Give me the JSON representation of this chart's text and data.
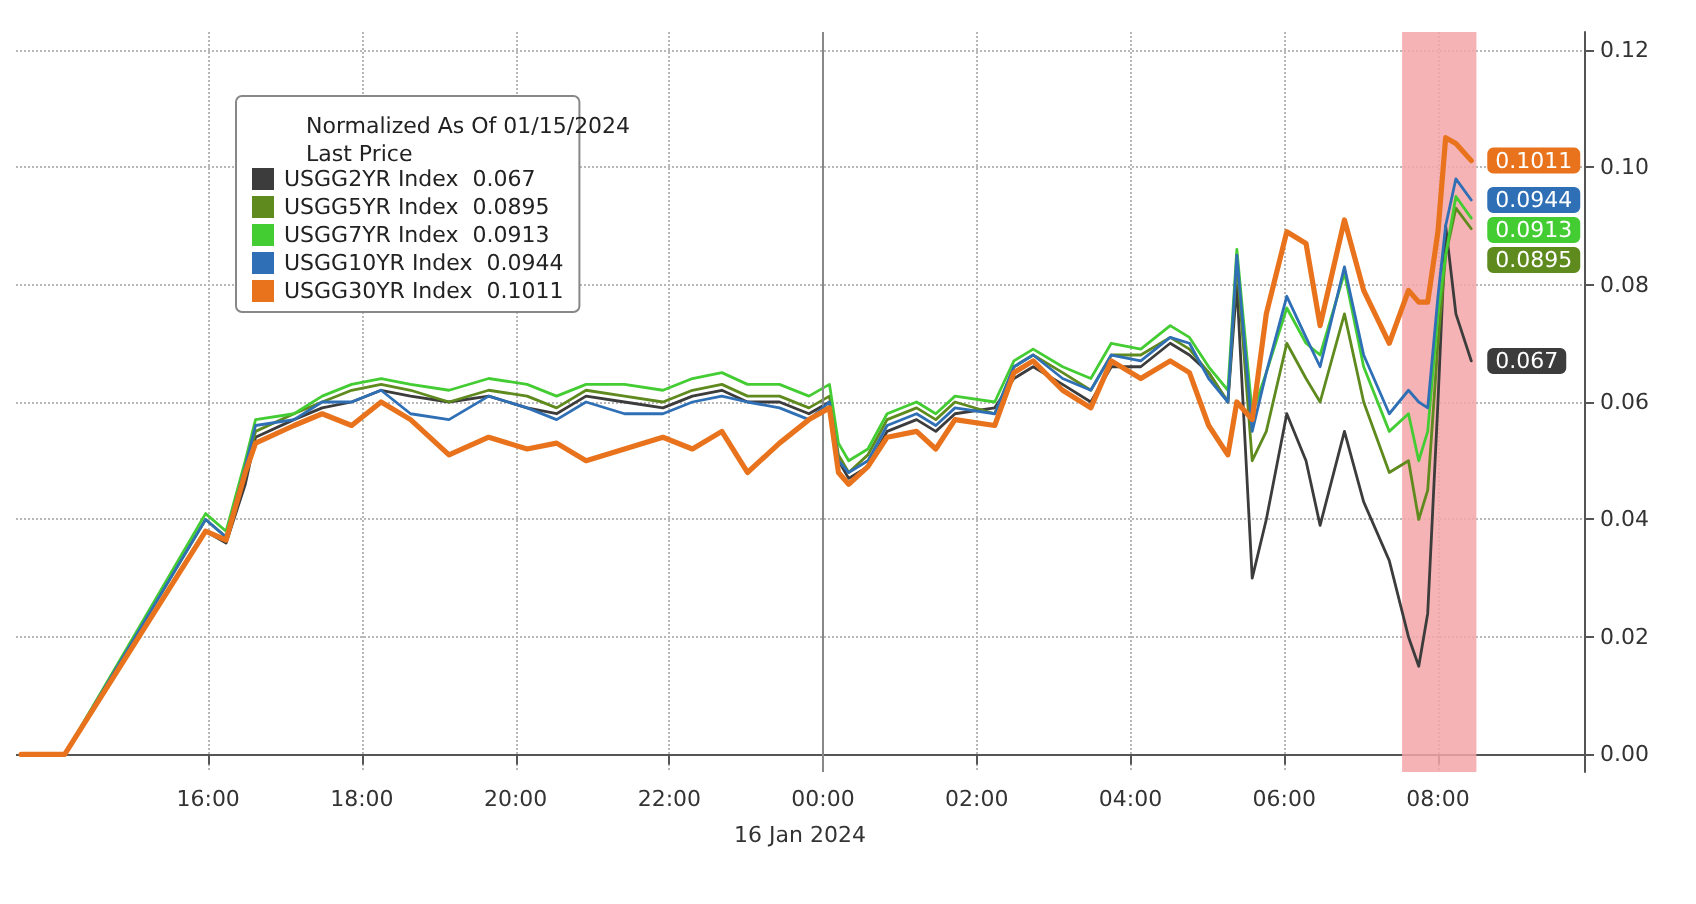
{
  "chart_data": {
    "type": "line",
    "legend_title": "Normalized As Of 01/15/2024\nLast Price",
    "xlabel": "16 Jan 2024",
    "x": [
      "2024-01-15T13:34",
      "2024-01-15T14:08",
      "2024-01-15T15:58",
      "2024-01-15T16:14",
      "2024-01-15T16:29",
      "2024-01-15T16:37",
      "2024-01-15T17:07",
      "2024-01-15T17:29",
      "2024-01-15T17:52",
      "2024-01-15T18:15",
      "2024-01-15T18:38",
      "2024-01-15T19:08",
      "2024-01-15T19:39",
      "2024-01-15T20:09",
      "2024-01-15T20:32",
      "2024-01-15T20:55",
      "2024-01-15T21:25",
      "2024-01-15T21:55",
      "2024-01-15T22:18",
      "2024-01-15T22:41",
      "2024-01-15T23:01",
      "2024-01-15T23:26",
      "2024-01-15T23:49",
      "2024-01-16T00:05",
      "2024-01-16T00:12",
      "2024-01-16T00:20",
      "2024-01-16T00:35",
      "2024-01-16T00:50",
      "2024-01-16T01:13",
      "2024-01-16T01:28",
      "2024-01-16T01:43",
      "2024-01-16T02:14",
      "2024-01-16T02:29",
      "2024-01-16T02:44",
      "2024-01-16T03:07",
      "2024-01-16T03:29",
      "2024-01-16T03:45",
      "2024-01-16T04:08",
      "2024-01-16T04:31",
      "2024-01-16T04:46",
      "2024-01-16T05:01",
      "2024-01-16T05:16",
      "2024-01-16T05:23",
      "2024-01-16T05:35",
      "2024-01-16T05:46",
      "2024-01-16T06:02",
      "2024-01-16T06:17",
      "2024-01-16T06:28",
      "2024-01-16T06:47",
      "2024-01-16T07:02",
      "2024-01-16T07:22",
      "2024-01-16T07:37",
      "2024-01-16T07:45",
      "2024-01-16T07:52",
      "2024-01-16T08:00",
      "2024-01-16T08:06",
      "2024-01-16T08:14",
      "2024-01-16T08:26"
    ],
    "series": [
      {
        "name": "USGG2YR Index  0.067",
        "color": "#3c3c3c",
        "value_labels": [
          null,
          null,
          null,
          null,
          null,
          null,
          null,
          null,
          null,
          null,
          null,
          null,
          null,
          null,
          null,
          null,
          null,
          null,
          null,
          null,
          null,
          null,
          null,
          null,
          null,
          null,
          null,
          null,
          null,
          null,
          null,
          null,
          null,
          null,
          null,
          null,
          null,
          null,
          null,
          null,
          null,
          null,
          null,
          null,
          null,
          null,
          null,
          null,
          null,
          null,
          null,
          null,
          null,
          null,
          null,
          null,
          null,
          "0.067"
        ],
        "values": [
          0,
          0,
          0.038,
          0.036,
          0.046,
          0.054,
          0.057,
          0.059,
          0.06,
          0.062,
          0.061,
          0.06,
          0.061,
          0.059,
          0.058,
          0.061,
          0.06,
          0.059,
          0.061,
          0.062,
          0.06,
          0.06,
          0.058,
          0.06,
          0.05,
          0.047,
          0.049,
          0.055,
          0.057,
          0.055,
          0.058,
          0.059,
          0.064,
          0.066,
          0.063,
          0.06,
          0.066,
          0.066,
          0.07,
          0.068,
          0.065,
          0.06,
          0.08,
          0.03,
          0.04,
          0.058,
          0.05,
          0.039,
          0.055,
          0.043,
          0.033,
          0.02,
          0.015,
          0.024,
          0.06,
          0.09,
          0.075,
          0.067
        ]
      },
      {
        "name": "USGG5YR Index  0.0895",
        "color": "#5e8a1e",
        "value_labels": [
          null,
          null,
          null,
          null,
          null,
          null,
          null,
          null,
          null,
          null,
          null,
          null,
          null,
          null,
          null,
          null,
          null,
          null,
          null,
          null,
          null,
          null,
          null,
          null,
          null,
          null,
          null,
          null,
          null,
          null,
          null,
          null,
          null,
          null,
          null,
          null,
          null,
          null,
          null,
          null,
          null,
          null,
          null,
          null,
          null,
          null,
          null,
          null,
          null,
          null,
          null,
          null,
          null,
          null,
          null,
          null,
          null,
          "0.0895"
        ],
        "values": [
          0,
          0,
          0.04,
          0.037,
          0.048,
          0.055,
          0.058,
          0.06,
          0.062,
          0.063,
          0.062,
          0.06,
          0.062,
          0.061,
          0.059,
          0.062,
          0.061,
          0.06,
          0.062,
          0.063,
          0.061,
          0.061,
          0.059,
          0.061,
          0.051,
          0.048,
          0.051,
          0.057,
          0.059,
          0.057,
          0.06,
          0.058,
          0.066,
          0.068,
          0.065,
          0.062,
          0.068,
          0.068,
          0.071,
          0.069,
          0.065,
          0.06,
          0.084,
          0.05,
          0.055,
          0.07,
          0.064,
          0.06,
          0.075,
          0.06,
          0.048,
          0.05,
          0.04,
          0.045,
          0.07,
          0.085,
          0.093,
          0.0895
        ]
      },
      {
        "name": "USGG7YR Index  0.0913",
        "color": "#44cc33",
        "value_labels": [
          null,
          null,
          null,
          null,
          null,
          null,
          null,
          null,
          null,
          null,
          null,
          null,
          null,
          null,
          null,
          null,
          null,
          null,
          null,
          null,
          null,
          null,
          null,
          null,
          null,
          null,
          null,
          null,
          null,
          null,
          null,
          null,
          null,
          null,
          null,
          null,
          null,
          null,
          null,
          null,
          null,
          null,
          null,
          null,
          null,
          null,
          null,
          null,
          null,
          null,
          null,
          null,
          null,
          null,
          null,
          null,
          null,
          "0.0913"
        ],
        "values": [
          0,
          0,
          0.041,
          0.038,
          0.05,
          0.057,
          0.058,
          0.061,
          0.063,
          0.064,
          0.063,
          0.062,
          0.064,
          0.063,
          0.061,
          0.063,
          0.063,
          0.062,
          0.064,
          0.065,
          0.063,
          0.063,
          0.061,
          0.063,
          0.053,
          0.05,
          0.052,
          0.058,
          0.06,
          0.058,
          0.061,
          0.06,
          0.067,
          0.069,
          0.066,
          0.064,
          0.07,
          0.069,
          0.073,
          0.071,
          0.066,
          0.062,
          0.086,
          0.058,
          0.065,
          0.076,
          0.07,
          0.068,
          0.082,
          0.066,
          0.055,
          0.058,
          0.05,
          0.055,
          0.075,
          0.085,
          0.095,
          0.0913
        ]
      },
      {
        "name": "USGG10YR Index  0.0944",
        "color": "#2f6fb5",
        "value_labels": [
          null,
          null,
          null,
          null,
          null,
          null,
          null,
          null,
          null,
          null,
          null,
          null,
          null,
          null,
          null,
          null,
          null,
          null,
          null,
          null,
          null,
          null,
          null,
          null,
          null,
          null,
          null,
          null,
          null,
          null,
          null,
          null,
          null,
          null,
          null,
          null,
          null,
          null,
          null,
          null,
          null,
          null,
          null,
          null,
          null,
          null,
          null,
          null,
          null,
          null,
          null,
          null,
          null,
          null,
          null,
          null,
          null,
          "0.0944"
        ],
        "values": [
          0,
          0,
          0.04,
          0.037,
          0.049,
          0.056,
          0.057,
          0.06,
          0.06,
          0.062,
          0.058,
          0.057,
          0.061,
          0.059,
          0.057,
          0.06,
          0.058,
          0.058,
          0.06,
          0.061,
          0.06,
          0.059,
          0.057,
          0.06,
          0.05,
          0.048,
          0.05,
          0.056,
          0.058,
          0.056,
          0.059,
          0.058,
          0.066,
          0.068,
          0.064,
          0.062,
          0.068,
          0.067,
          0.071,
          0.07,
          0.064,
          0.06,
          0.085,
          0.055,
          0.065,
          0.078,
          0.071,
          0.066,
          0.083,
          0.068,
          0.058,
          0.062,
          0.06,
          0.059,
          0.078,
          0.09,
          0.098,
          0.0944
        ]
      },
      {
        "name": "USGG30YR Index  0.1011",
        "color": "#e8731c",
        "value_labels": [
          null,
          null,
          null,
          null,
          null,
          null,
          null,
          null,
          null,
          null,
          null,
          null,
          null,
          null,
          null,
          null,
          null,
          null,
          null,
          null,
          null,
          null,
          null,
          null,
          null,
          null,
          null,
          null,
          null,
          null,
          null,
          null,
          null,
          null,
          null,
          null,
          null,
          null,
          null,
          null,
          null,
          null,
          null,
          null,
          null,
          null,
          null,
          null,
          null,
          null,
          null,
          null,
          null,
          null,
          null,
          null,
          null,
          "0.1011"
        ],
        "values": [
          0,
          0,
          0.038,
          0.0365,
          0.048,
          0.053,
          0.056,
          0.058,
          0.056,
          0.06,
          0.057,
          0.051,
          0.054,
          0.052,
          0.053,
          0.05,
          0.052,
          0.054,
          0.052,
          0.055,
          0.048,
          0.053,
          0.057,
          0.059,
          0.048,
          0.046,
          0.049,
          0.054,
          0.055,
          0.052,
          0.057,
          0.056,
          0.065,
          0.067,
          0.062,
          0.059,
          0.067,
          0.064,
          0.067,
          0.065,
          0.056,
          0.051,
          0.06,
          0.057,
          0.075,
          0.089,
          0.087,
          0.073,
          0.091,
          0.079,
          0.07,
          0.079,
          0.077,
          0.077,
          0.089,
          0.105,
          0.104,
          0.1011
        ]
      }
    ],
    "xlim": [
      "2024-01-15T13:30",
      "2024-01-16T09:54"
    ],
    "xticks": [
      {
        "value": "2024-01-15T16:00",
        "label": "16:00"
      },
      {
        "value": "2024-01-15T18:00",
        "label": "18:00"
      },
      {
        "value": "2024-01-15T20:00",
        "label": "20:00"
      },
      {
        "value": "2024-01-15T22:00",
        "label": "22:00"
      },
      {
        "value": "2024-01-16T00:00",
        "label": "00:00"
      },
      {
        "value": "2024-01-16T02:00",
        "label": "02:00"
      },
      {
        "value": "2024-01-16T04:00",
        "label": "04:00"
      },
      {
        "value": "2024-01-16T06:00",
        "label": "06:00"
      },
      {
        "value": "2024-01-16T08:00",
        "label": "08:00"
      }
    ],
    "ylim": [
      -0.003,
      0.123
    ],
    "yticks": [
      {
        "value": 0,
        "label": "0.00"
      },
      {
        "value": 0.02,
        "label": "0.02"
      },
      {
        "value": 0.04,
        "label": "0.04"
      },
      {
        "value": 0.06,
        "label": "0.06"
      },
      {
        "value": 0.08,
        "label": "0.08"
      },
      {
        "value": 0.1,
        "label": "0.10"
      },
      {
        "value": 0.12,
        "label": "0.12"
      }
    ],
    "ref_lines": [
      {
        "axis": "x",
        "value": "2024-01-16T00:00",
        "color": "#888888",
        "line_style": "solid"
      }
    ],
    "bands": [
      {
        "axis": "x",
        "from": "2024-01-16T07:32",
        "to": "2024-01-16T08:30",
        "color": "#f4a6a8"
      }
    ],
    "grid": true,
    "legend": "top left",
    "marker": "none",
    "line_style": "solid"
  }
}
